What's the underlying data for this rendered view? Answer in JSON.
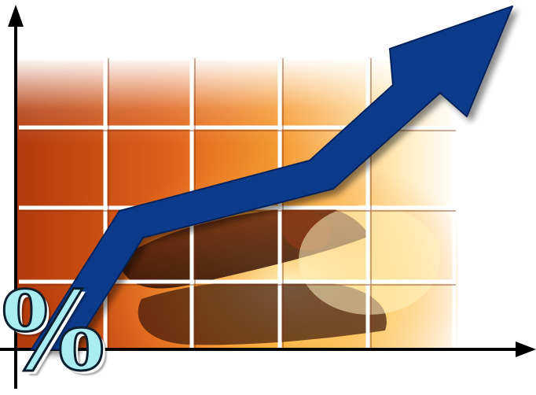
{
  "symbol": "%",
  "colors": {
    "arrow": "#0b3a8c",
    "grid_line": "#ffffff",
    "axis": "#000000",
    "fire_deep": "#b8420e",
    "fire_mid": "#f07a22",
    "fire_bright": "#ffd36a",
    "percent_fill": "#a9ecf1",
    "percent_outline": "#0c1f2e"
  },
  "icons": [
    "up-arrow-icon",
    "percent-sign-icon",
    "fire-background-icon"
  ]
}
